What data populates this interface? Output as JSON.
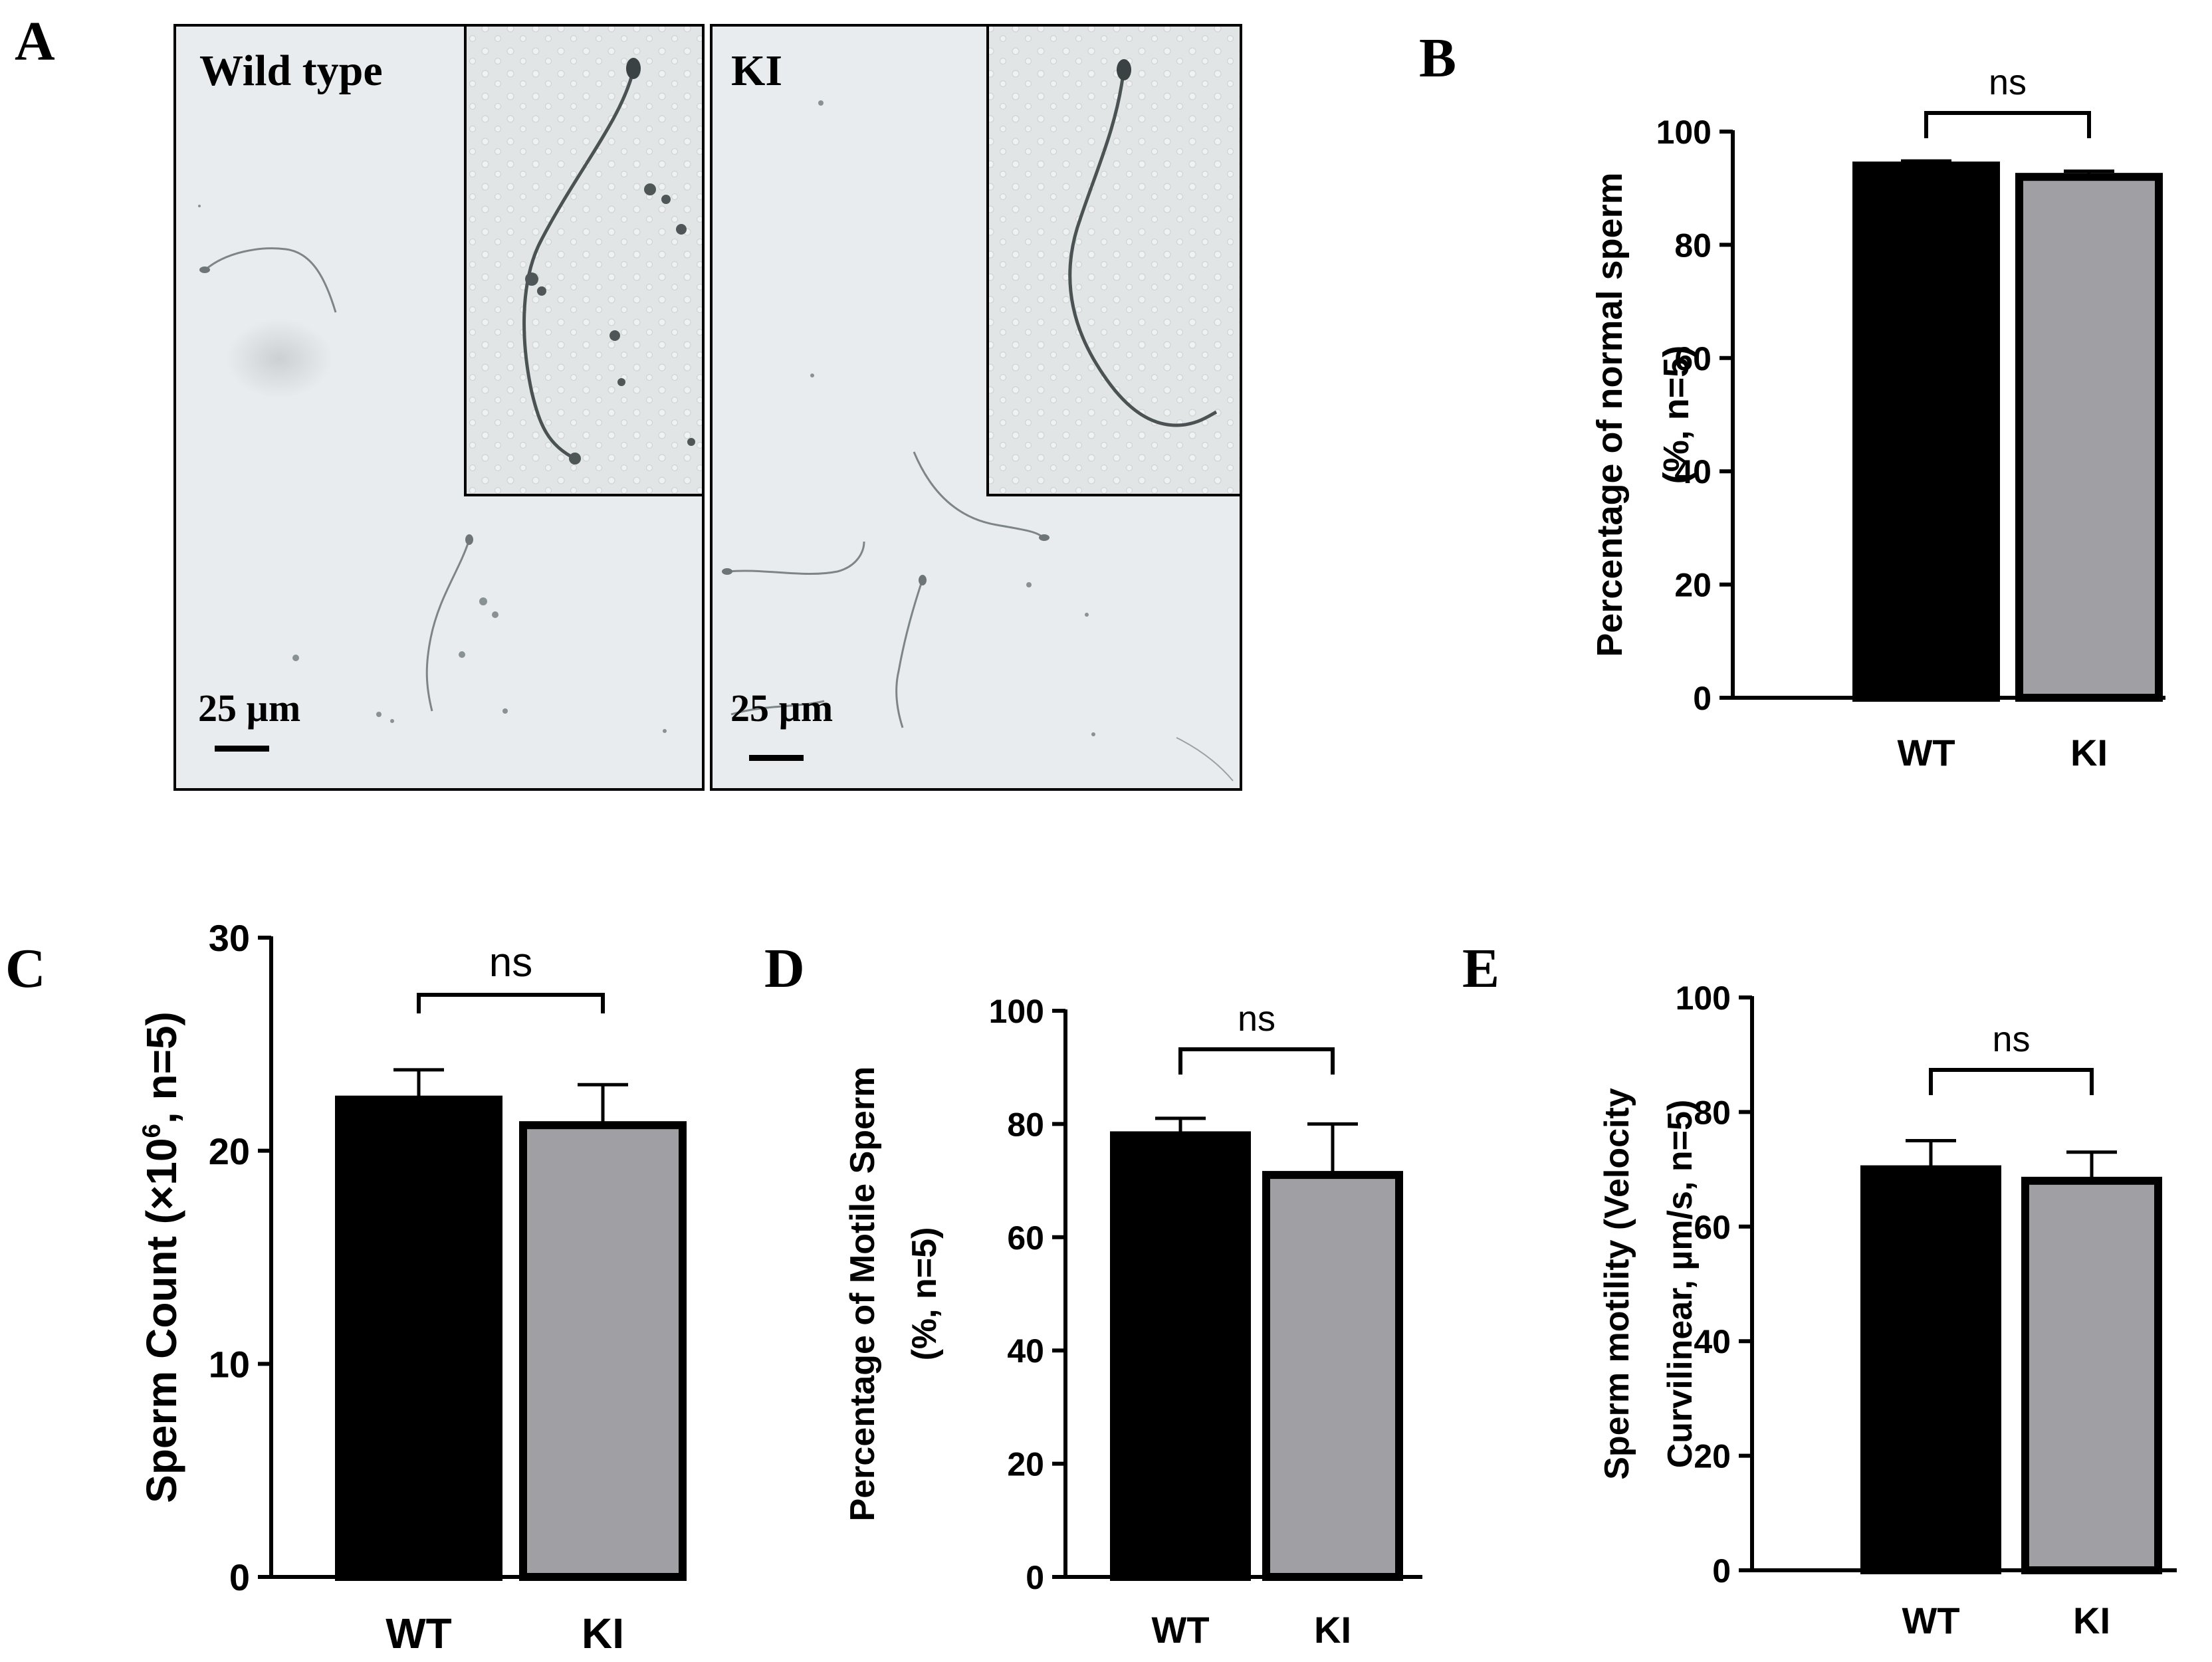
{
  "panel_letters": {
    "a": "A",
    "b": "B",
    "c": "C",
    "d": "D",
    "e": "E"
  },
  "micrographs": {
    "wild_type": {
      "label": "Wild type",
      "scale_bar": "25 µm"
    },
    "knock_in": {
      "label": "KI",
      "scale_bar": "25 µm"
    }
  },
  "colors": {
    "wt_bar": "#000000",
    "ki_bar": "#a0a0a4",
    "micrograph_bg": "#e9ecee",
    "inset_bg": "#e1e5e6"
  },
  "chart_data": [
    {
      "panel": "B",
      "type": "bar",
      "categories": [
        "WT",
        "KI"
      ],
      "values": [
        94,
        92
      ],
      "errors": [
        0.8,
        1.0
      ],
      "ylabel": "Percentage of normal sperm",
      "ylabel2": "(%, n=5)",
      "ylim": [
        0,
        100
      ],
      "yticks": [
        "0",
        "20",
        "40",
        "60",
        "80",
        "100"
      ],
      "significance": "ns",
      "grid": false
    },
    {
      "panel": "C",
      "type": "bar",
      "categories": [
        "WT",
        "KI"
      ],
      "values": [
        22.4,
        21.2
      ],
      "errors": [
        1.4,
        1.9
      ],
      "ylabel_pre": "Sperm Count (×10",
      "ylabel_sup": "6",
      "ylabel_post": ", n=5)",
      "ylim": [
        0,
        30
      ],
      "yticks": [
        "0",
        "10",
        "20",
        "30"
      ],
      "significance": "ns",
      "grid": false
    },
    {
      "panel": "D",
      "type": "bar",
      "categories": [
        "WT",
        "KI"
      ],
      "values": [
        78,
        71
      ],
      "errors": [
        3,
        9
      ],
      "ylabel": "Percentage of Motile Sperm",
      "ylabel2": "(%, n=5)",
      "ylim": [
        0,
        100
      ],
      "yticks": [
        "0",
        "20",
        "40",
        "60",
        "80",
        "100"
      ],
      "significance": "ns",
      "grid": false
    },
    {
      "panel": "E",
      "type": "bar",
      "categories": [
        "WT",
        "KI"
      ],
      "values": [
        70,
        68
      ],
      "errors": [
        5,
        5
      ],
      "ylabel": "Sperm motility (Velocity",
      "ylabel2": "Curvilinear, µm/s, n=5)",
      "ylim": [
        0,
        100
      ],
      "yticks": [
        "0",
        "20",
        "40",
        "60",
        "80",
        "100"
      ],
      "significance": "ns",
      "grid": false
    }
  ]
}
